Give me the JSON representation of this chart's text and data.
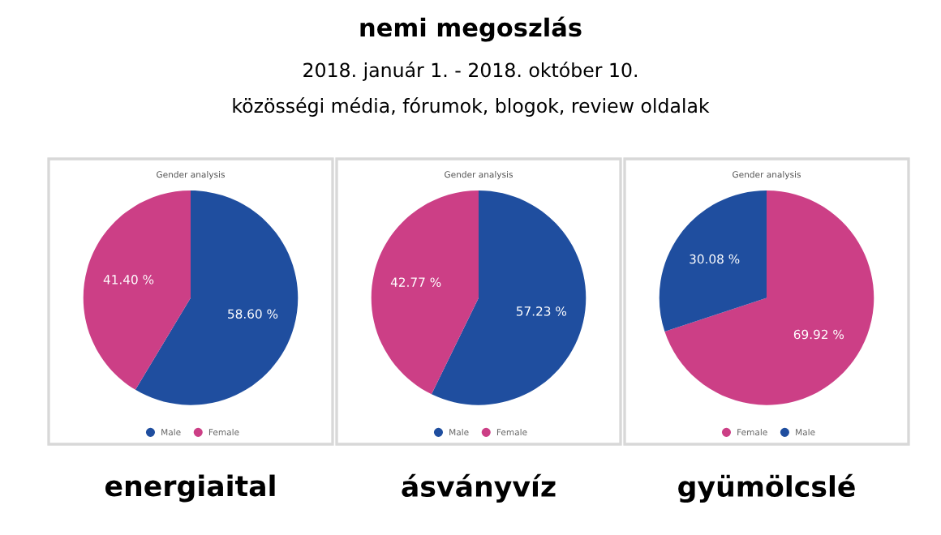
{
  "chart_data": [
    {
      "type": "other",
      "title": "nemi megoszlás",
      "subtitle": "2018. január 1. - 2018. október 10.",
      "annotations": [
        "közösségi média, fórumok, blogok, review oldalak"
      ]
    },
    {
      "type": "pie",
      "title": "Gender analysis",
      "xlabel": "energiaital",
      "categories": [
        "Male",
        "Female"
      ],
      "values": [
        58.6,
        41.4
      ],
      "colors": [
        "#1f4e9f",
        "#cc3f86"
      ],
      "value_labels": [
        "58.60 %",
        "41.40 %"
      ],
      "legend": "bottom"
    },
    {
      "type": "pie",
      "title": "Gender analysis",
      "xlabel": "ásványvíz",
      "categories": [
        "Male",
        "Female"
      ],
      "values": [
        57.23,
        42.77
      ],
      "colors": [
        "#1f4e9f",
        "#cc3f86"
      ],
      "value_labels": [
        "57.23 %",
        "42.77 %"
      ],
      "legend": "bottom"
    },
    {
      "type": "pie",
      "title": "Gender analysis",
      "xlabel": "gyümölcslé",
      "categories": [
        "Female",
        "Male"
      ],
      "values": [
        69.92,
        30.08
      ],
      "colors": [
        "#cc3f86",
        "#1f4e9f"
      ],
      "value_labels": [
        "69.92 %",
        "30.08 %"
      ],
      "legend": "bottom"
    }
  ]
}
